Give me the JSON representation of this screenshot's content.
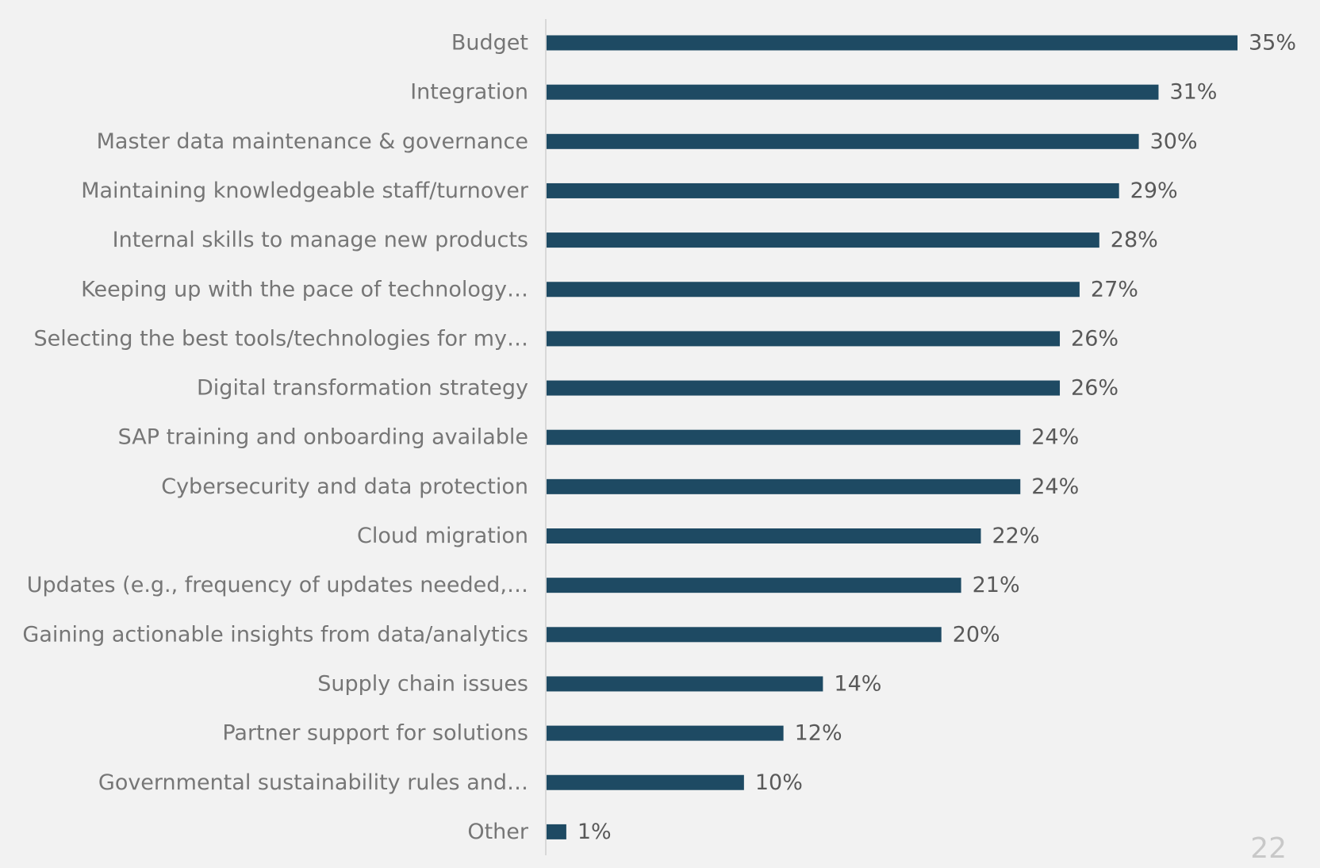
{
  "page": {
    "page_number": "22"
  },
  "chart_data": {
    "type": "bar",
    "orientation": "horizontal",
    "title": "",
    "xlabel": "",
    "ylabel": "",
    "xlim": [
      0,
      35
    ],
    "grid": false,
    "legend": "none",
    "bar_color": "#1e4a63",
    "categories": [
      "Budget",
      "Integration",
      "Master data maintenance & governance",
      "Maintaining knowledgeable staff/turnover",
      "Internal skills to manage new products",
      "Keeping up with the pace of technology…",
      "Selecting the best tools/technologies for my…",
      "Digital transformation strategy",
      "SAP training and onboarding available",
      "Cybersecurity and data protection",
      "Cloud migration",
      "Updates (e.g., frequency of updates needed,…",
      "Gaining actionable insights from data/analytics",
      "Supply chain issues",
      "Partner support for solutions",
      "Governmental sustainability rules and…",
      "Other"
    ],
    "values": [
      35,
      31,
      30,
      29,
      28,
      27,
      26,
      26,
      24,
      24,
      22,
      21,
      20,
      14,
      12,
      10,
      1
    ],
    "value_labels": [
      "35%",
      "31%",
      "30%",
      "29%",
      "28%",
      "27%",
      "26%",
      "26%",
      "24%",
      "24%",
      "22%",
      "21%",
      "20%",
      "14%",
      "12%",
      "10%",
      "1%"
    ]
  }
}
